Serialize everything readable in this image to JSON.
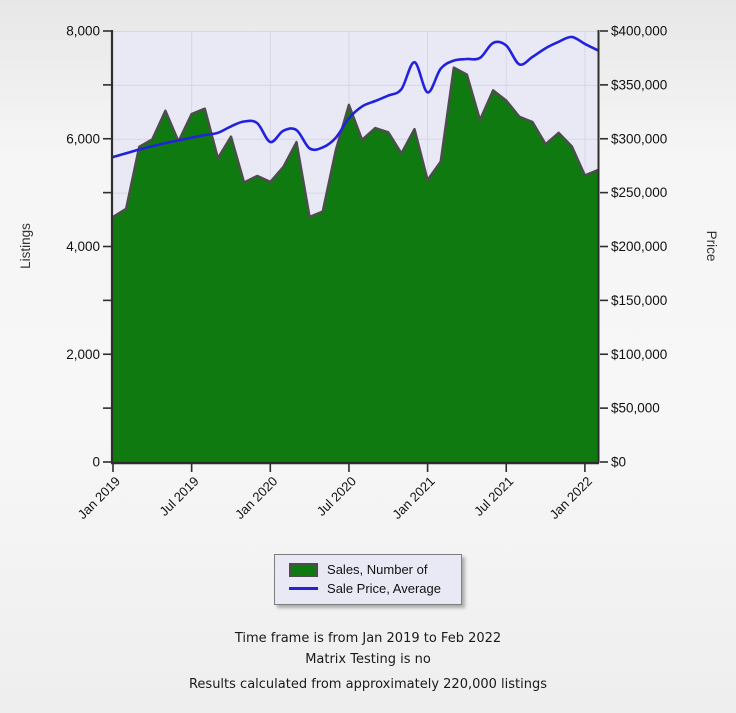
{
  "chart_data": {
    "type": "area+line",
    "x": [
      "Jan 2019",
      "Feb 2019",
      "Mar 2019",
      "Apr 2019",
      "May 2019",
      "Jun 2019",
      "Jul 2019",
      "Aug 2019",
      "Sep 2019",
      "Oct 2019",
      "Nov 2019",
      "Dec 2019",
      "Jan 2020",
      "Feb 2020",
      "Mar 2020",
      "Apr 2020",
      "May 2020",
      "Jun 2020",
      "Jul 2020",
      "Aug 2020",
      "Sep 2020",
      "Oct 2020",
      "Nov 2020",
      "Dec 2020",
      "Jan 2021",
      "Feb 2021",
      "Mar 2021",
      "Apr 2021",
      "May 2021",
      "Jun 2021",
      "Jul 2021",
      "Aug 2021",
      "Sep 2021",
      "Oct 2021",
      "Nov 2021",
      "Dec 2021",
      "Jan 2022",
      "Feb 2022"
    ],
    "x_ticks": [
      "Jan 2019",
      "Jul 2019",
      "Jan 2020",
      "Jul 2020",
      "Jan 2021",
      "Jul 2021",
      "Jan 2022"
    ],
    "y_left": {
      "label": "Listings",
      "min": 0,
      "max": 8000,
      "grid_step": 1000,
      "label_step": 2000
    },
    "y_right": {
      "label": "Price",
      "min": 0,
      "max": 400000,
      "tick_step": 50000,
      "prefix": "$"
    },
    "grid": true,
    "legend_position": "bottom-center",
    "series": [
      {
        "name": "Sales, Number of",
        "type": "area",
        "axis": "left",
        "color": "#0f7a0f",
        "edge_color": "#4d4d4d",
        "values": [
          4550,
          4700,
          5850,
          5990,
          6520,
          5950,
          6460,
          6560,
          5640,
          6040,
          5190,
          5310,
          5200,
          5480,
          5940,
          4550,
          4650,
          5790,
          6630,
          5980,
          6200,
          6120,
          5730,
          6180,
          5235,
          5575,
          7320,
          7190,
          6350,
          6900,
          6710,
          6410,
          6310,
          5900,
          6110,
          5860,
          5320,
          5420
        ]
      },
      {
        "name": "Sale Price, Average",
        "type": "line",
        "axis": "right",
        "color": "#2222dd",
        "values": [
          283000,
          286500,
          290000,
          293000,
          296000,
          298500,
          301000,
          303500,
          305500,
          311500,
          316000,
          314500,
          297000,
          307500,
          308000,
          291000,
          292000,
          301000,
          319000,
          330000,
          335000,
          340000,
          346000,
          371000,
          343000,
          365000,
          372500,
          374000,
          375000,
          389000,
          386500,
          369000,
          376000,
          384000,
          390000,
          394500,
          388000,
          382000
        ]
      }
    ],
    "colors": {
      "plot_bg": "#e9e9f6",
      "grid": "#d6d6e5",
      "axis": "#2e2e2e",
      "tick_label": "#111111",
      "axis_title": "#333333"
    }
  },
  "legend": {
    "items": [
      {
        "label": "Sales, Number of",
        "swatch": "green-area"
      },
      {
        "label": "Sale Price, Average",
        "swatch": "blue-line"
      }
    ]
  },
  "footer": {
    "lines": [
      "Time frame is from Jan 2019 to Feb 2022",
      "Matrix Testing is no",
      "Results calculated from approximately 220,000 listings"
    ]
  }
}
